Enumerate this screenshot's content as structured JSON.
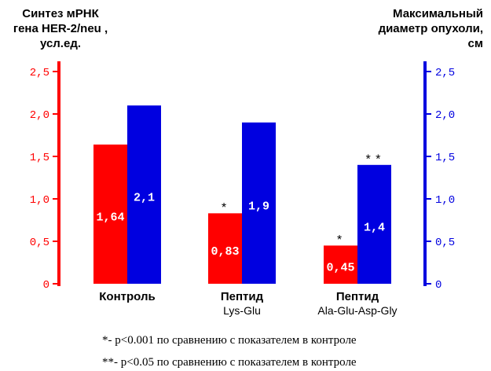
{
  "left_axis_title": {
    "line1": "Синтез мРНК",
    "line2": "гена HER-2/neu ,",
    "line3": "усл.ед."
  },
  "right_axis_title": {
    "line1": "Максимальный",
    "line2": "диаметр опухоли,",
    "line3": "см"
  },
  "chart_data": {
    "type": "bar",
    "categories": [
      {
        "line1": "Контроль",
        "line2": ""
      },
      {
        "line1": "Пептид",
        "line2": "Lys-Glu"
      },
      {
        "line1": "Пептид",
        "line2": "Ala-Glu-Asp-Gly"
      }
    ],
    "series": [
      {
        "axis": "left",
        "color": "#ff0000",
        "values": [
          1.64,
          0.83,
          0.45
        ],
        "labels": [
          "1,64",
          "0,83",
          "0,45"
        ],
        "markers": [
          "",
          "*",
          "*"
        ]
      },
      {
        "axis": "right",
        "color": "#0000e0",
        "values": [
          2.1,
          1.9,
          1.4
        ],
        "labels": [
          "2,1",
          "1,9",
          "1,4"
        ],
        "markers": [
          "",
          "",
          "**"
        ]
      }
    ],
    "left_axis": {
      "ylim": [
        0,
        2.5
      ],
      "ticks": [
        "0",
        "0,5",
        "1,0",
        "1,5",
        "2,0",
        "2,5"
      ],
      "color": "#ff0000"
    },
    "right_axis": {
      "ylim": [
        0,
        2.5
      ],
      "ticks": [
        "0",
        "0,5",
        "1,0",
        "1,5",
        "2,0",
        "2,5"
      ],
      "color": "#0000e0"
    },
    "grid": false
  },
  "footnotes": [
    "*- p<0.001 по сравнению с показателем в контроле",
    "**- p<0.05 по сравнению с показателем в контроле"
  ]
}
